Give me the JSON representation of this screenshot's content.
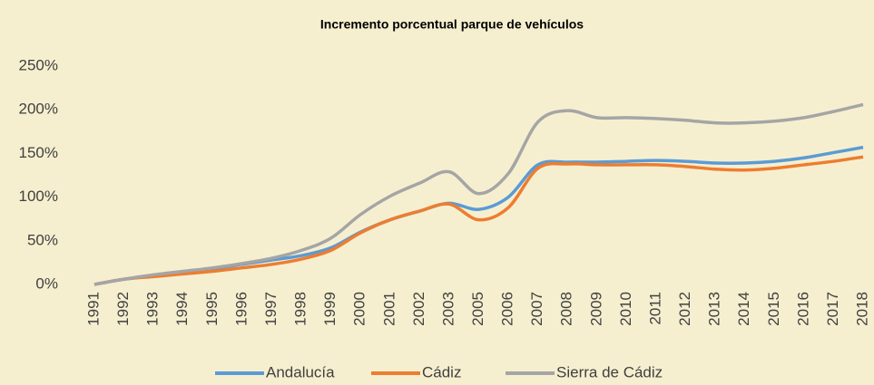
{
  "chart_data": {
    "type": "line",
    "title": "Incremento porcentual parque de vehículos",
    "categories": [
      "1991",
      "1992",
      "1993",
      "1994",
      "1995",
      "1996",
      "1997",
      "1998",
      "1999",
      "2000",
      "2001",
      "2002",
      "2003",
      "2005",
      "2006",
      "2007",
      "2008",
      "2009",
      "2010",
      "2011",
      "2012",
      "2013",
      "2014",
      "2015",
      "2016",
      "2017",
      "2018"
    ],
    "series": [
      {
        "name": "Andalucía",
        "color": "#5b9bd5",
        "values": [
          0,
          6,
          10,
          14,
          18,
          23,
          28,
          33,
          42,
          60,
          74,
          84,
          93,
          86,
          100,
          137,
          140,
          140,
          141,
          142,
          141,
          139,
          139,
          141,
          145,
          151,
          157
        ]
      },
      {
        "name": "Cádiz",
        "color": "#ed7d31",
        "values": [
          0,
          6,
          9,
          12,
          15,
          19,
          23,
          29,
          39,
          59,
          74,
          84,
          92,
          74,
          88,
          133,
          138,
          137,
          137,
          137,
          135,
          132,
          131,
          133,
          137,
          141,
          146
        ]
      },
      {
        "name": "Sierra de Cádiz",
        "color": "#a5a5a5",
        "values": [
          0,
          6,
          11,
          15,
          19,
          24,
          30,
          39,
          53,
          80,
          101,
          116,
          129,
          104,
          127,
          186,
          199,
          191,
          191,
          190,
          188,
          185,
          185,
          187,
          191,
          198,
          206
        ]
      }
    ],
    "ylim": [
      0,
      250
    ],
    "yticks": [
      {
        "value": 0,
        "label": "0%"
      },
      {
        "value": 50,
        "label": "50%"
      },
      {
        "value": 100,
        "label": "100%"
      },
      {
        "value": 150,
        "label": "150%"
      },
      {
        "value": 200,
        "label": "200%"
      },
      {
        "value": 250,
        "label": "250%"
      }
    ],
    "grid": false,
    "legend": "bottom"
  }
}
